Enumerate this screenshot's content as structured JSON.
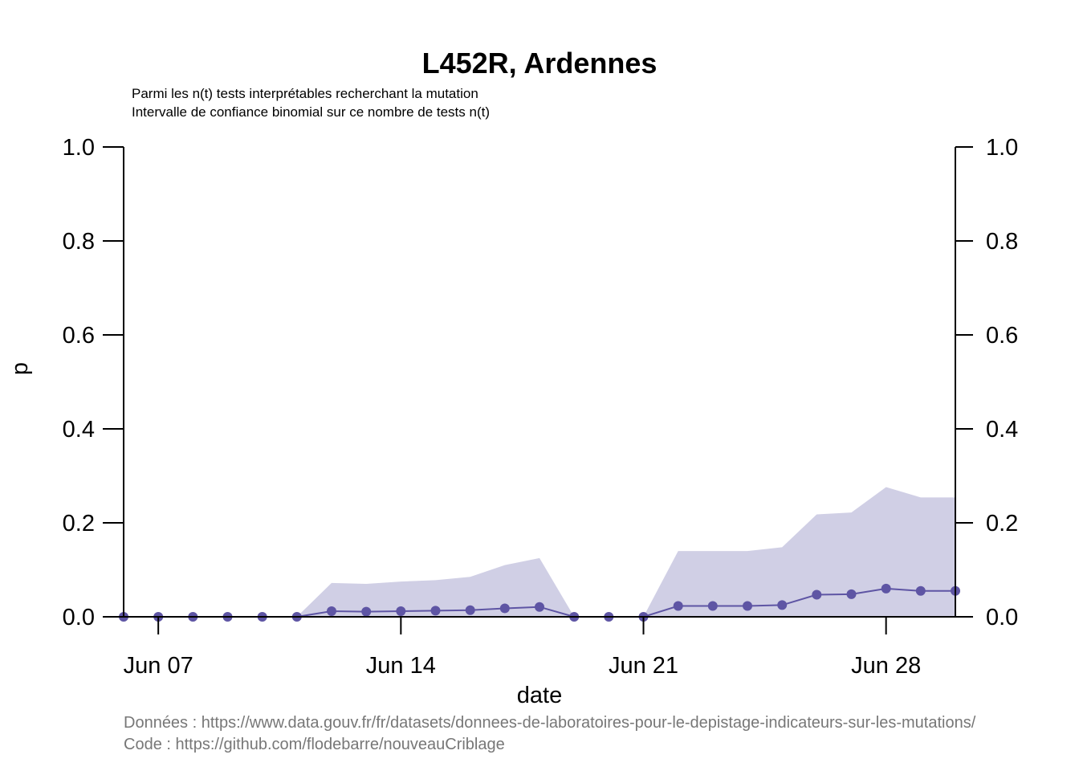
{
  "chart_data": {
    "type": "line",
    "title": "L452R, Ardennes",
    "subtitle_lines": [
      "Parmi les n(t) tests interprétables recherchant la mutation",
      "Intervalle de confiance binomial sur ce nombre de tests n(t)"
    ],
    "xlabel": "date",
    "ylabel": "p",
    "x_ticks": [
      "Jun 07",
      "Jun 14",
      "Jun 21",
      "Jun 28"
    ],
    "y_ticks": [
      "0.0",
      "0.2",
      "0.4",
      "0.6",
      "0.8",
      "1.0"
    ],
    "ylim": [
      0,
      1
    ],
    "xlim": [
      "2021-06-06",
      "2021-06-30"
    ],
    "series": [
      {
        "x": [
          "2021-06-06",
          "2021-06-07",
          "2021-06-08",
          "2021-06-09",
          "2021-06-10",
          "2021-06-11",
          "2021-06-12",
          "2021-06-13",
          "2021-06-14",
          "2021-06-15",
          "2021-06-16",
          "2021-06-17",
          "2021-06-18",
          "2021-06-19",
          "2021-06-20",
          "2021-06-21",
          "2021-06-22",
          "2021-06-23",
          "2021-06-24",
          "2021-06-25",
          "2021-06-26",
          "2021-06-27",
          "2021-06-28",
          "2021-06-29",
          "2021-06-30"
        ],
        "values": [
          0,
          0,
          0,
          0,
          0,
          0,
          0.012,
          0.011,
          0.012,
          0.013,
          0.014,
          0.018,
          0.021,
          0,
          0,
          0,
          0.023,
          0.023,
          0.023,
          0.025,
          0.047,
          0.048,
          0.06,
          0.055,
          0.055
        ],
        "ci_lower": [
          0,
          0,
          0,
          0,
          0,
          0,
          0,
          0,
          0,
          0,
          0,
          0,
          0,
          0,
          0,
          0,
          0,
          0,
          0,
          0,
          0,
          0,
          0,
          0,
          0
        ],
        "ci_upper": [
          0,
          0,
          0,
          0,
          0,
          0,
          0.072,
          0.07,
          0.075,
          0.078,
          0.085,
          0.11,
          0.125,
          0,
          0,
          0,
          0.14,
          0.14,
          0.14,
          0.148,
          0.218,
          0.222,
          0.276,
          0.254,
          0.254
        ],
        "color": "#5e55a4",
        "band_color": "#d0cfe5"
      }
    ],
    "grid": false,
    "legend": "none",
    "caption_lines": [
      "Données : https://www.data.gouv.fr/fr/datasets/donnees-de-laboratoires-pour-le-depistage-indicateurs-sur-les-mutations/",
      "Code : https://github.com/flodebarre/nouveauCriblage"
    ]
  }
}
